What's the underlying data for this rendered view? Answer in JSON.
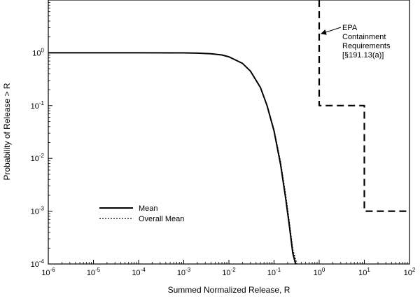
{
  "chart_data": {
    "type": "line",
    "xlabel": "Summed Normalized Release, R",
    "ylabel": "Probability of Release > R",
    "x_scale": "log",
    "y_scale": "log",
    "xlim": [
      1e-06,
      100
    ],
    "ylim": [
      0.0001,
      10
    ],
    "grid": false,
    "x_ticks": [
      {
        "value": 1e-06,
        "base": "10",
        "exp": "-6"
      },
      {
        "value": 1e-05,
        "base": "10",
        "exp": "-5"
      },
      {
        "value": 0.0001,
        "base": "10",
        "exp": "-4"
      },
      {
        "value": 0.001,
        "base": "10",
        "exp": "-3"
      },
      {
        "value": 0.01,
        "base": "10",
        "exp": "-2"
      },
      {
        "value": 0.1,
        "base": "10",
        "exp": "-1"
      },
      {
        "value": 1,
        "base": "10",
        "exp": "0"
      },
      {
        "value": 10,
        "base": "10",
        "exp": "1"
      },
      {
        "value": 100,
        "base": "10",
        "exp": "2"
      }
    ],
    "y_ticks": [
      {
        "value": 0.0001,
        "base": "10",
        "exp": "-4"
      },
      {
        "value": 0.001,
        "base": "10",
        "exp": "-3"
      },
      {
        "value": 0.01,
        "base": "10",
        "exp": "-2"
      },
      {
        "value": 0.1,
        "base": "10",
        "exp": "-1"
      },
      {
        "value": 1,
        "base": "10",
        "exp": "0"
      }
    ],
    "legend_position": "lower-left",
    "series": [
      {
        "name": "Mean",
        "style": "solid",
        "points": [
          [
            1e-06,
            1.0
          ],
          [
            0.0001,
            1.0
          ],
          [
            0.001,
            0.995
          ],
          [
            0.002,
            0.985
          ],
          [
            0.004,
            0.96
          ],
          [
            0.007,
            0.91
          ],
          [
            0.01,
            0.84
          ],
          [
            0.02,
            0.63
          ],
          [
            0.03,
            0.45
          ],
          [
            0.05,
            0.22
          ],
          [
            0.07,
            0.1
          ],
          [
            0.1,
            0.033
          ],
          [
            0.14,
            0.0075
          ],
          [
            0.18,
            0.0018
          ],
          [
            0.22,
            0.0005
          ],
          [
            0.26,
            0.00016
          ],
          [
            0.3,
            0.0001
          ]
        ]
      },
      {
        "name": "Overall Mean",
        "style": "dotted",
        "points": [
          [
            1e-06,
            1.0
          ],
          [
            0.0001,
            1.0
          ],
          [
            0.001,
            0.995
          ],
          [
            0.002,
            0.985
          ],
          [
            0.004,
            0.96
          ],
          [
            0.007,
            0.91
          ],
          [
            0.01,
            0.84
          ],
          [
            0.02,
            0.63
          ],
          [
            0.03,
            0.45
          ],
          [
            0.05,
            0.22
          ],
          [
            0.07,
            0.1
          ],
          [
            0.1,
            0.035
          ],
          [
            0.14,
            0.0085
          ],
          [
            0.18,
            0.0021
          ],
          [
            0.22,
            0.0006
          ],
          [
            0.26,
            0.00019
          ],
          [
            0.32,
            0.0001
          ]
        ]
      },
      {
        "name": "EPA Containment Requirements",
        "style": "dashed",
        "points": [
          [
            1,
            10
          ],
          [
            1,
            0.1
          ],
          [
            10,
            0.1
          ],
          [
            10,
            0.001
          ],
          [
            100,
            0.001
          ]
        ]
      }
    ],
    "annotation": {
      "lines": [
        "EPA",
        "Containment",
        "Requirements",
        "[§191.13(a)]"
      ],
      "arrow_to": [
        1,
        2.3
      ]
    }
  }
}
